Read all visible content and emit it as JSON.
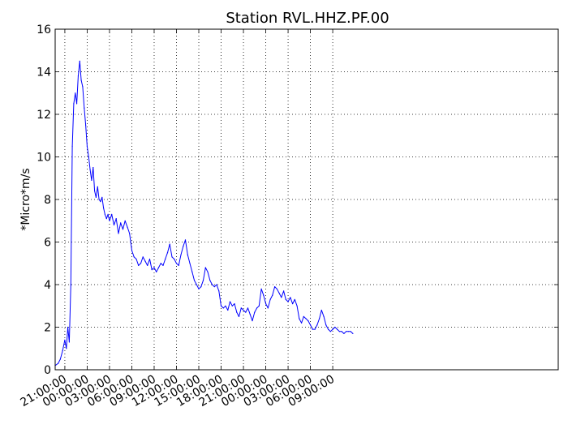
{
  "chart_data": {
    "type": "line",
    "title": "Station RVL.HHZ.PF.00",
    "xlabel": "",
    "ylabel": "*Micro*m/s",
    "grid": true,
    "ylim": [
      0,
      16
    ],
    "xlim_hours": [
      0,
      67.6
    ],
    "y_ticks": [
      0,
      2,
      4,
      6,
      8,
      10,
      12,
      14,
      16
    ],
    "x_ticks": [
      {
        "label": "21:00:00",
        "hour": 1.3
      },
      {
        "label": "00:00:00",
        "hour": 4.3
      },
      {
        "label": "03:00:00",
        "hour": 7.3
      },
      {
        "label": "06:00:00",
        "hour": 10.3
      },
      {
        "label": "09:00:00",
        "hour": 13.3
      },
      {
        "label": "12:00:00",
        "hour": 16.3
      },
      {
        "label": "15:00:00",
        "hour": 19.3
      },
      {
        "label": "18:00:00",
        "hour": 22.3
      },
      {
        "label": "21:00:00",
        "hour": 25.3
      },
      {
        "label": "00:00:00",
        "hour": 28.3
      },
      {
        "label": "03:00:00",
        "hour": 31.3
      },
      {
        "label": "06:00:00",
        "hour": 34.3
      },
      {
        "label": "09:00:00",
        "hour": 37.3
      }
    ],
    "series": [
      {
        "color": "#0000ff",
        "x": [
          0,
          0.4,
          0.7,
          1.0,
          1.3,
          1.5,
          1.7,
          1.9,
          2.1,
          2.3,
          2.5,
          2.7,
          2.9,
          3.1,
          3.3,
          3.5,
          3.7,
          3.9,
          4.1,
          4.3,
          4.5,
          4.7,
          4.9,
          5.1,
          5.3,
          5.5,
          5.7,
          5.9,
          6.1,
          6.3,
          6.5,
          6.7,
          6.9,
          7.1,
          7.3,
          7.6,
          7.9,
          8.2,
          8.5,
          8.8,
          9.1,
          9.4,
          9.7,
          10.0,
          10.3,
          10.6,
          10.9,
          11.2,
          11.5,
          11.8,
          12.1,
          12.4,
          12.7,
          13.0,
          13.3,
          13.6,
          13.9,
          14.2,
          14.5,
          14.8,
          15.1,
          15.4,
          15.7,
          16.0,
          16.3,
          16.6,
          16.9,
          17.2,
          17.5,
          17.8,
          18.1,
          18.4,
          18.7,
          19.0,
          19.3,
          19.6,
          19.9,
          20.2,
          20.5,
          20.8,
          21.1,
          21.4,
          21.7,
          22.0,
          22.3,
          22.6,
          22.9,
          23.2,
          23.5,
          23.8,
          24.1,
          24.4,
          24.7,
          25.0,
          25.3,
          25.6,
          25.9,
          26.2,
          26.5,
          26.8,
          27.1,
          27.4,
          27.7,
          28.0,
          28.3,
          28.6,
          28.9,
          29.2,
          29.5,
          29.8,
          30.1,
          30.4,
          30.7,
          31.0,
          31.3,
          31.6,
          31.9,
          32.2,
          32.5,
          32.8,
          33.1,
          33.4,
          33.7,
          34.0,
          34.3,
          34.6,
          34.9,
          35.2,
          35.5,
          35.8,
          36.1,
          36.4,
          36.7,
          37.0,
          37.3,
          37.6,
          37.9,
          38.2,
          38.5,
          38.8,
          39.1,
          39.4,
          39.7,
          40.0
        ],
        "y": [
          0.2,
          0.3,
          0.5,
          0.9,
          1.4,
          1.0,
          2.0,
          1.3,
          4.0,
          10.5,
          12.5,
          13.0,
          12.5,
          13.8,
          14.5,
          13.6,
          13.3,
          12.3,
          11.5,
          10.5,
          10.0,
          9.4,
          8.9,
          9.5,
          8.4,
          8.1,
          8.6,
          8.0,
          7.9,
          8.1,
          7.6,
          7.3,
          7.1,
          7.3,
          7.0,
          7.3,
          6.8,
          7.1,
          6.4,
          6.9,
          6.6,
          7.0,
          6.7,
          6.4,
          5.6,
          5.3,
          5.2,
          4.9,
          5.0,
          5.3,
          5.1,
          4.9,
          5.2,
          4.7,
          4.8,
          4.6,
          4.8,
          5.0,
          4.9,
          5.2,
          5.5,
          5.9,
          5.3,
          5.2,
          5.0,
          4.9,
          5.4,
          5.8,
          6.1,
          5.4,
          5.0,
          4.6,
          4.2,
          4.0,
          3.8,
          3.9,
          4.2,
          4.8,
          4.6,
          4.2,
          4.0,
          3.9,
          4.0,
          3.7,
          3.0,
          2.9,
          3.0,
          2.8,
          3.2,
          3.0,
          3.1,
          2.7,
          2.5,
          2.9,
          2.8,
          2.7,
          2.9,
          2.6,
          2.3,
          2.7,
          2.9,
          3.0,
          3.8,
          3.5,
          3.1,
          2.9,
          3.3,
          3.5,
          3.9,
          3.8,
          3.6,
          3.4,
          3.7,
          3.3,
          3.2,
          3.4,
          3.1,
          3.3,
          3.0,
          2.4,
          2.2,
          2.5,
          2.4,
          2.3,
          2.1,
          1.9,
          1.9,
          2.1,
          2.4,
          2.8,
          2.5,
          2.1,
          1.9,
          1.8,
          1.9,
          2.0,
          1.9,
          1.8,
          1.8,
          1.7,
          1.8,
          1.8,
          1.8,
          1.7
        ]
      }
    ]
  }
}
